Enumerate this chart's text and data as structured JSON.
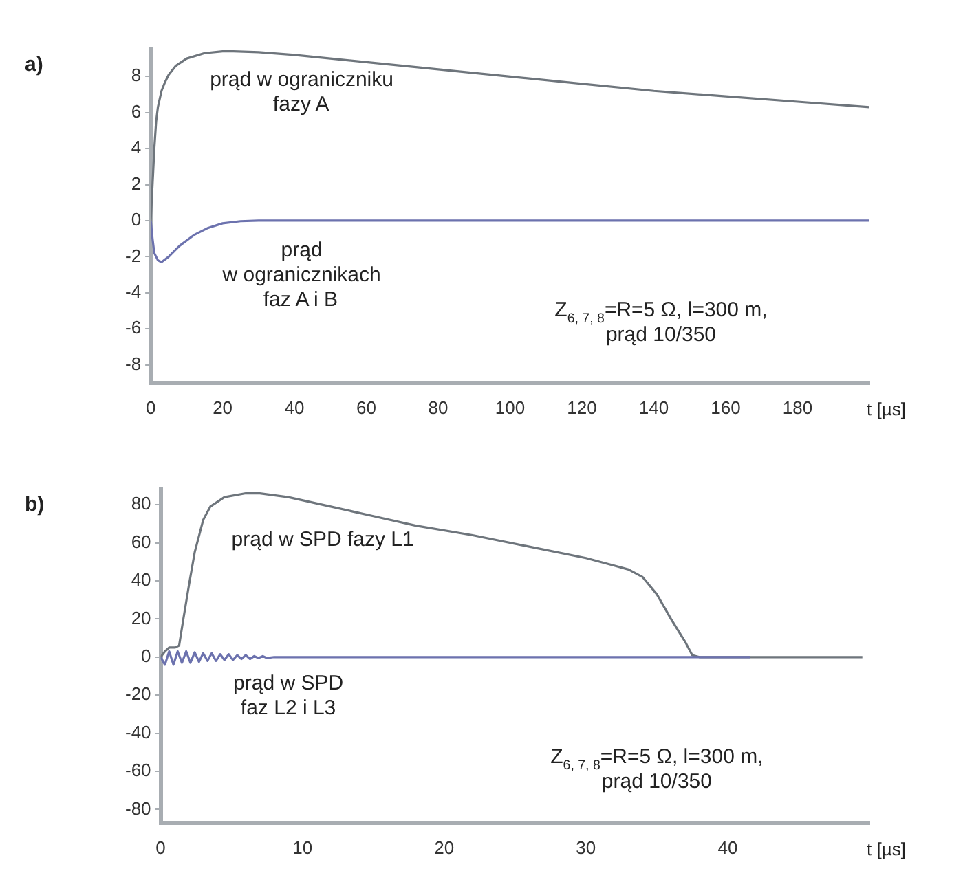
{
  "chart_data": [
    {
      "type": "line",
      "title": "a)",
      "xlabel": "t [µs]",
      "xlim": [
        0,
        200
      ],
      "xticks": [
        0,
        20,
        40,
        60,
        80,
        100,
        120,
        140,
        160,
        180
      ],
      "ylim": [
        -9,
        9.5
      ],
      "yticks": [
        -8,
        -6,
        -4,
        -2,
        0,
        2,
        4,
        6,
        8
      ],
      "grid": false,
      "legend": false,
      "marker": "none",
      "line_style": "solid",
      "annotations": [
        "Z$_{6, 7, 8}$=R=5 Ω, l=300 m,\nprąd 10/350"
      ],
      "series": [
        {
          "name": "prąd w ograniczniku\nfazy A",
          "color": "#6e757c",
          "x": [
            0,
            0.5,
            1,
            1.5,
            2,
            3,
            4,
            5,
            7,
            10,
            15,
            20,
            23,
            30,
            40,
            60,
            80,
            100,
            120,
            140,
            160,
            180,
            200
          ],
          "values": [
            0,
            2,
            4,
            5.5,
            6.3,
            7.2,
            7.7,
            8.1,
            8.6,
            9.0,
            9.3,
            9.4,
            9.4,
            9.35,
            9.2,
            8.8,
            8.4,
            8.0,
            7.6,
            7.2,
            6.9,
            6.6,
            6.3
          ]
        },
        {
          "name": "prąd\nw ogranicznikach\nfaz A i B",
          "color": "#6c72ae",
          "x": [
            0,
            0.5,
            1,
            2,
            3,
            5,
            8,
            12,
            16,
            20,
            25,
            30,
            200
          ],
          "values": [
            0,
            -1,
            -1.8,
            -2.2,
            -2.3,
            -2.0,
            -1.4,
            -0.8,
            -0.4,
            -0.15,
            -0.03,
            0,
            0
          ]
        }
      ]
    },
    {
      "type": "line",
      "title": "b)",
      "xlabel": "t [µs]",
      "xlim": [
        0,
        50
      ],
      "xticks": [
        0,
        10,
        20,
        30,
        40
      ],
      "ylim": [
        -87,
        88
      ],
      "yticks": [
        -80,
        -60,
        -40,
        -20,
        0,
        20,
        40,
        60,
        80
      ],
      "grid": false,
      "legend": false,
      "marker": "none",
      "line_style": "solid",
      "annotations": [
        "Z$_{6, 7, 8}$=R=5 Ω, l=300 m,\nprąd 10/350"
      ],
      "series": [
        {
          "name": "prąd w SPD\nfaz L2 i L3",
          "color": "#6c72ae",
          "x": [
            0,
            0.3,
            0.6,
            0.9,
            1.2,
            1.5,
            1.8,
            2.1,
            2.4,
            2.7,
            3.0,
            3.3,
            3.6,
            3.9,
            4.2,
            4.5,
            4.8,
            5.1,
            5.4,
            5.7,
            6.0,
            6.3,
            6.6,
            6.9,
            7.2,
            7.5,
            8,
            41.6
          ],
          "values": [
            0,
            -4,
            3,
            -4,
            3,
            -3,
            3,
            -3,
            2.5,
            -2.5,
            2,
            -2,
            2,
            -2,
            1.5,
            -1.5,
            1.5,
            -1.5,
            1,
            -1,
            1,
            -1,
            0.5,
            -0.5,
            0.5,
            -0.5,
            0,
            0
          ]
        },
        {
          "name": "prąd w SPD fazy L1",
          "color": "#6e757c",
          "x": [
            0,
            0.3,
            0.6,
            1.0,
            1.3,
            1.6,
            2.0,
            2.4,
            3.0,
            3.5,
            4.5,
            6,
            7,
            9,
            12,
            15,
            18,
            22,
            26,
            30,
            32,
            33,
            34,
            35,
            36,
            37,
            37.5,
            38,
            49.5
          ],
          "values": [
            0,
            3,
            5,
            5,
            6,
            20,
            38,
            55,
            72,
            79,
            84,
            86,
            86,
            84,
            79,
            74,
            69,
            64,
            58,
            52,
            48,
            46,
            42,
            33,
            20,
            8,
            1,
            0,
            0
          ]
        }
      ]
    }
  ]
}
